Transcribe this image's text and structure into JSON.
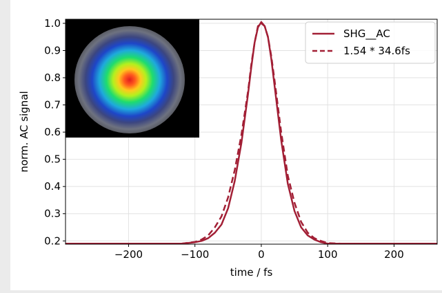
{
  "chart_data": {
    "type": "line",
    "xlabel": "time / fs",
    "ylabel": "norm. AC signal",
    "xlim": [
      -295,
      265
    ],
    "ylim": [
      0.188,
      1.015
    ],
    "xticks": [
      -200,
      -100,
      0,
      100,
      200
    ],
    "xtick_labels": [
      "−200",
      "−100",
      "0",
      "100",
      "200"
    ],
    "yticks": [
      0.2,
      0.3,
      0.4,
      0.5,
      0.6,
      0.7,
      0.8,
      0.9,
      1.0
    ],
    "ytick_labels": [
      "0.2",
      "0.3",
      "0.4",
      "0.5",
      "0.6",
      "0.7",
      "0.8",
      "0.9",
      "1.0"
    ],
    "grid": true,
    "legend_position": "top-right",
    "colors": {
      "series": "#a21f35",
      "grid": "#e2e2e2",
      "axis": "#000000"
    },
    "series": [
      {
        "name": "SHG__AC",
        "style": "solid",
        "x": [
          -295,
          -250,
          -200,
          -150,
          -120,
          -100,
          -90,
          -80,
          -70,
          -60,
          -50,
          -40,
          -30,
          -20,
          -15,
          -10,
          -5,
          0,
          5,
          10,
          15,
          20,
          30,
          40,
          50,
          60,
          70,
          80,
          90,
          100,
          120,
          150,
          200,
          250,
          265
        ],
        "y": [
          0.19,
          0.19,
          0.19,
          0.19,
          0.19,
          0.195,
          0.2,
          0.21,
          0.23,
          0.26,
          0.32,
          0.42,
          0.56,
          0.74,
          0.84,
          0.93,
          0.985,
          1.005,
          0.99,
          0.95,
          0.87,
          0.77,
          0.57,
          0.41,
          0.31,
          0.25,
          0.22,
          0.205,
          0.195,
          0.19,
          0.19,
          0.19,
          0.19,
          0.19,
          0.19
        ]
      },
      {
        "name": "1.54 * 34.6fs",
        "style": "dashed",
        "x": [
          -295,
          -250,
          -200,
          -150,
          -120,
          -100,
          -90,
          -80,
          -70,
          -60,
          -50,
          -40,
          -30,
          -20,
          -15,
          -10,
          -5,
          0,
          5,
          10,
          15,
          20,
          30,
          40,
          50,
          60,
          70,
          80,
          90,
          100,
          120,
          150,
          200,
          250,
          265
        ],
        "y": [
          0.19,
          0.19,
          0.19,
          0.19,
          0.19,
          0.196,
          0.205,
          0.22,
          0.25,
          0.29,
          0.36,
          0.46,
          0.59,
          0.75,
          0.85,
          0.93,
          0.99,
          1.0,
          0.99,
          0.95,
          0.88,
          0.79,
          0.6,
          0.44,
          0.34,
          0.27,
          0.23,
          0.21,
          0.2,
          0.192,
          0.19,
          0.19,
          0.19,
          0.19,
          0.19
        ]
      }
    ]
  },
  "inset_image": {
    "description_name": "beam-profile-image"
  }
}
